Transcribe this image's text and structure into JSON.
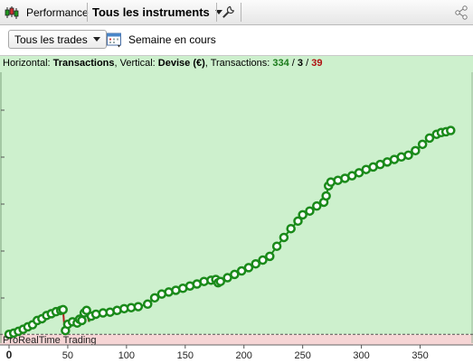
{
  "toolbar": {
    "performance_label": "Performance",
    "instruments_label": "Tous les instruments"
  },
  "filters": {
    "trades_selected": "Tous les trades",
    "period_label": "Semaine en cours"
  },
  "info_bar": {
    "horizontal_label": "Horizontal: ",
    "horizontal_value": "Transactions",
    "vertical_label": ", Vertical: ",
    "vertical_value": "Devise (€)",
    "transactions_label": ", Transactions: ",
    "total": "334",
    "neutral": "3",
    "losing": "39",
    "slash": " / "
  },
  "watermark": "ProRealTime Trading",
  "colors": {
    "plot_bg": "#cdf0cd",
    "loss_bg": "#f6d5d5",
    "line_gain": "#1a8a1a",
    "line_loss": "#b3201f",
    "total_color": "#1a7a1a",
    "losing_color": "#b01010"
  },
  "chart_data": {
    "type": "line",
    "x_ticks": [
      "0",
      "50",
      "100",
      "150",
      "200",
      "250",
      "300",
      "350"
    ],
    "x_tick_values": [
      0,
      50,
      100,
      150,
      200,
      250,
      300,
      350
    ],
    "xlim": [
      0,
      385
    ],
    "ylim": [
      -0.35,
      10.2
    ],
    "baseline": 0,
    "points": [
      [
        0,
        0.0
      ],
      [
        4,
        0.05
      ],
      [
        8,
        0.12
      ],
      [
        12,
        0.2
      ],
      [
        16,
        0.3
      ],
      [
        20,
        0.38
      ],
      [
        24,
        0.55
      ],
      [
        28,
        0.62
      ],
      [
        32,
        0.75
      ],
      [
        36,
        0.82
      ],
      [
        40,
        0.9
      ],
      [
        44,
        0.95
      ],
      [
        46,
        0.98
      ],
      [
        47,
        0.35
      ],
      [
        48,
        0.15
      ],
      [
        50,
        0.4
      ],
      [
        54,
        0.5
      ],
      [
        58,
        0.45
      ],
      [
        60,
        0.6
      ],
      [
        62,
        0.55
      ],
      [
        64,
        0.85
      ],
      [
        66,
        0.95
      ],
      [
        68,
        0.5
      ],
      [
        70,
        0.72
      ],
      [
        74,
        0.8
      ],
      [
        80,
        0.85
      ],
      [
        86,
        0.88
      ],
      [
        92,
        0.95
      ],
      [
        98,
        1.02
      ],
      [
        104,
        1.06
      ],
      [
        110,
        1.1
      ],
      [
        118,
        1.2
      ],
      [
        124,
        1.45
      ],
      [
        130,
        1.6
      ],
      [
        136,
        1.68
      ],
      [
        142,
        1.75
      ],
      [
        148,
        1.83
      ],
      [
        154,
        1.92
      ],
      [
        160,
        2.0
      ],
      [
        166,
        2.1
      ],
      [
        172,
        2.15
      ],
      [
        176,
        2.18
      ],
      [
        178,
        2.05
      ],
      [
        180,
        2.1
      ],
      [
        186,
        2.25
      ],
      [
        192,
        2.38
      ],
      [
        198,
        2.52
      ],
      [
        204,
        2.65
      ],
      [
        210,
        2.8
      ],
      [
        216,
        2.95
      ],
      [
        222,
        3.1
      ],
      [
        228,
        3.5
      ],
      [
        234,
        3.85
      ],
      [
        240,
        4.2
      ],
      [
        246,
        4.5
      ],
      [
        250,
        4.75
      ],
      [
        256,
        4.9
      ],
      [
        262,
        5.1
      ],
      [
        268,
        5.25
      ],
      [
        270,
        5.5
      ],
      [
        272,
        5.9
      ],
      [
        274,
        6.05
      ],
      [
        280,
        6.12
      ],
      [
        286,
        6.2
      ],
      [
        292,
        6.3
      ],
      [
        298,
        6.42
      ],
      [
        304,
        6.55
      ],
      [
        310,
        6.65
      ],
      [
        316,
        6.75
      ],
      [
        322,
        6.85
      ],
      [
        328,
        6.95
      ],
      [
        334,
        7.05
      ],
      [
        340,
        7.12
      ],
      [
        346,
        7.3
      ],
      [
        352,
        7.55
      ],
      [
        358,
        7.8
      ],
      [
        364,
        7.95
      ],
      [
        368,
        8.02
      ],
      [
        372,
        8.05
      ],
      [
        376,
        8.1
      ]
    ]
  }
}
